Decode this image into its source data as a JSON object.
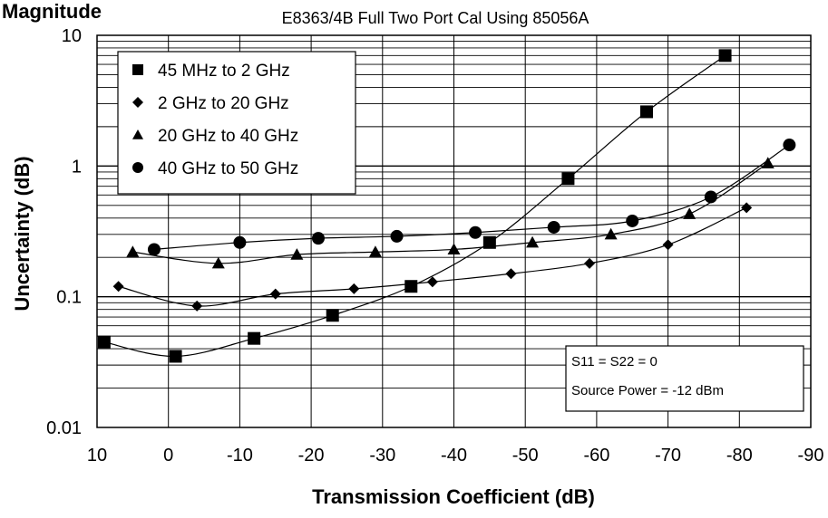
{
  "page": {
    "heading": "Magnitude"
  },
  "chart_data": {
    "type": "scatter",
    "title": "E8363/4B Full Two Port Cal Using 85056A",
    "xlabel": "Transmission Coefficient (dB)",
    "ylabel": "Uncertainty (dB)",
    "xlim": [
      10,
      -90
    ],
    "ylim": [
      0.01,
      10
    ],
    "yscale": "log",
    "grid": true,
    "x_ticks": [
      "10",
      "0",
      "-10",
      "-20",
      "-30",
      "-40",
      "-50",
      "-60",
      "-70",
      "-80",
      "-90"
    ],
    "y_ticks": [
      "10",
      "1",
      "0.1",
      "0.01"
    ],
    "legend_position": "top-left",
    "annotation": [
      "S11 = S22 = 0",
      "Source Power = -12 dBm"
    ],
    "series": [
      {
        "name": "45 MHz to 2 GHz",
        "marker": "square",
        "x": [
          9,
          -1,
          -12,
          -23,
          -34,
          -45,
          -56,
          -67,
          -78
        ],
        "y": [
          0.045,
          0.035,
          0.048,
          0.072,
          0.12,
          0.26,
          0.8,
          2.6,
          7.0
        ]
      },
      {
        "name": "2 GHz to 20 GHz",
        "marker": "diamond",
        "x": [
          7,
          -4,
          -15,
          -26,
          -37,
          -48,
          -59,
          -70,
          -81
        ],
        "y": [
          0.12,
          0.085,
          0.105,
          0.115,
          0.13,
          0.15,
          0.18,
          0.25,
          0.48
        ]
      },
      {
        "name": "20 GHz to 40 GHz",
        "marker": "triangle",
        "x": [
          5,
          -7,
          -18,
          -29,
          -40,
          -51,
          -62,
          -73,
          -84
        ],
        "y": [
          0.22,
          0.18,
          0.21,
          0.22,
          0.23,
          0.26,
          0.3,
          0.43,
          1.05
        ]
      },
      {
        "name": "40 GHz to 50 GHz",
        "marker": "circle",
        "x": [
          2,
          -10,
          -21,
          -32,
          -43,
          -54,
          -65,
          -76,
          -87
        ],
        "y": [
          0.23,
          0.26,
          0.28,
          0.29,
          0.31,
          0.34,
          0.38,
          0.58,
          1.45
        ]
      }
    ]
  }
}
